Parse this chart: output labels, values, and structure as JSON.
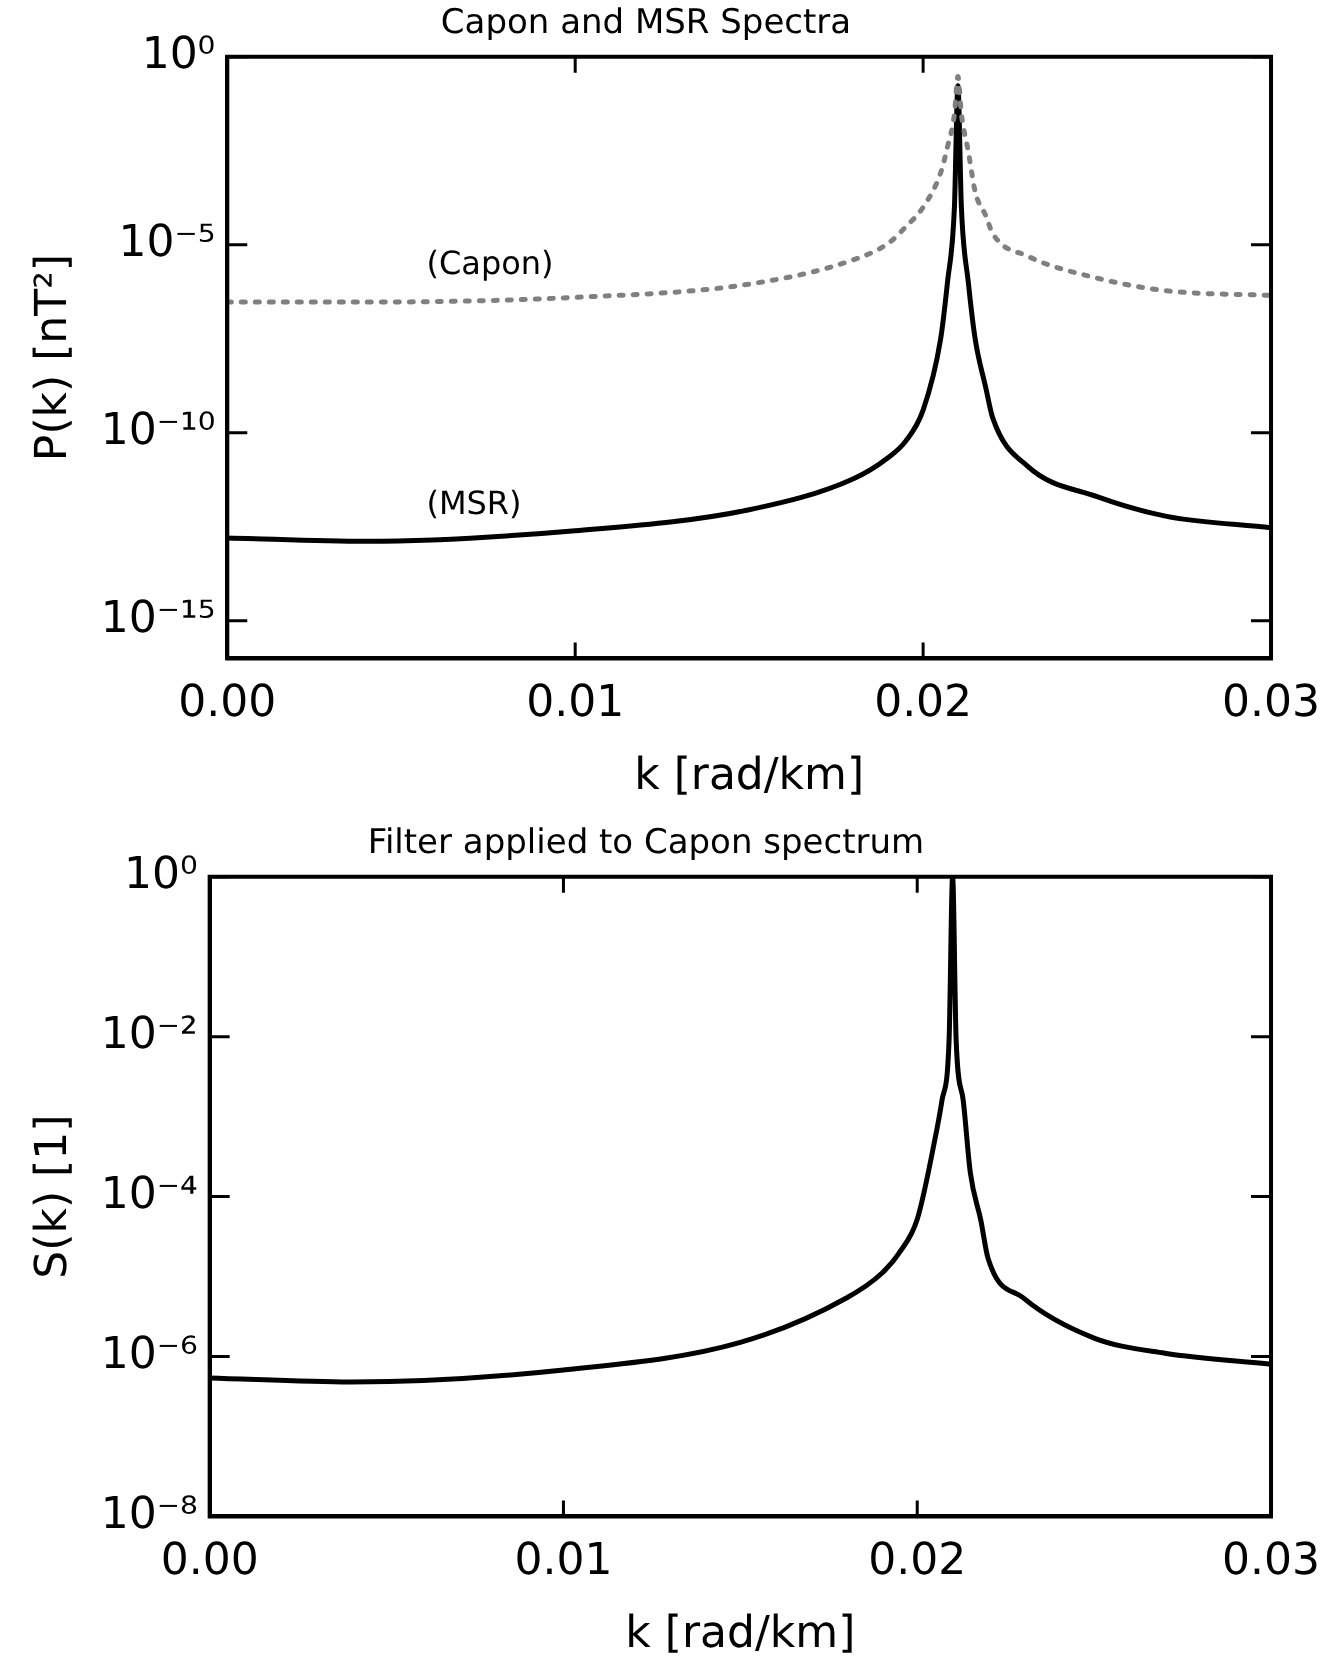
{
  "chart_data": [
    {
      "type": "line",
      "title": "Capon and MSR Spectra",
      "xlabel": "k [rad/km]",
      "ylabel": "P(k) [nT²]",
      "log": "y",
      "grid": false,
      "legend": false,
      "marker": "none",
      "x": [
        0,
        0.004,
        0.01,
        0.015,
        0.018,
        0.019,
        0.0195,
        0.02,
        0.0205,
        0.0207,
        0.0209,
        0.021,
        0.0211,
        0.0213,
        0.0215,
        0.0218,
        0.022,
        0.023,
        0.025,
        0.027,
        0.03
      ],
      "xlim": [
        0,
        0.03
      ],
      "xticks": [
        {
          "value": 0,
          "label": "0.00"
        },
        {
          "value": 0.01,
          "label": "0.01"
        },
        {
          "value": 0.02,
          "label": "0.02"
        },
        {
          "value": 0.03,
          "label": "0.03"
        }
      ],
      "ylim": [
        1e-16,
        1
      ],
      "yticks": [
        {
          "value": 1,
          "label": "10⁰"
        },
        {
          "value": 1e-05,
          "label": "10⁻⁵"
        },
        {
          "value": 1e-10,
          "label": "10⁻¹⁰"
        },
        {
          "value": 1e-15,
          "label": "10⁻¹⁵"
        }
      ],
      "series": [
        {
          "name": "(Capon)",
          "color": "#808080",
          "line_style": "dotted",
          "values": [
            3e-07,
            3e-07,
            4e-07,
            9e-07,
            4e-06,
            1.1e-05,
            3e-05,
            0.0001,
            0.0008,
            0.004,
            0.03,
            0.3,
            0.03,
            0.003,
            0.00025,
            6e-05,
            2e-05,
            5e-06,
            1.3e-06,
            6e-07,
            4.5e-07
          ]
        },
        {
          "name": "(MSR)",
          "color": "#000000",
          "line_style": "solid",
          "values": [
            1.6e-13,
            1.3e-13,
            2.5e-13,
            9e-13,
            6e-12,
            2.2e-11,
            6e-11,
            4e-10,
            3e-08,
            1e-06,
            0.0001,
            0.17,
            0.0001,
            1e-06,
            3e-08,
            1.6e-09,
            2.5e-10,
            1.3e-11,
            2e-12,
            6e-13,
            3e-13
          ]
        }
      ]
    },
    {
      "type": "line",
      "title": "Filter applied to Capon spectrum",
      "xlabel": "k [rad/km]",
      "ylabel": "S(k) [1]",
      "log": "y",
      "grid": false,
      "legend": false,
      "marker": "none",
      "x": [
        0,
        0.004,
        0.01,
        0.015,
        0.018,
        0.019,
        0.0195,
        0.02,
        0.0205,
        0.0207,
        0.0209,
        0.021,
        0.0211,
        0.0213,
        0.0215,
        0.0218,
        0.022,
        0.023,
        0.025,
        0.027,
        0.03
      ],
      "xlim": [
        0,
        0.03
      ],
      "xticks": [
        {
          "value": 0,
          "label": "0.00"
        },
        {
          "value": 0.01,
          "label": "0.01"
        },
        {
          "value": 0.02,
          "label": "0.02"
        },
        {
          "value": 0.03,
          "label": "0.03"
        }
      ],
      "ylim": [
        1e-08,
        1
      ],
      "yticks": [
        {
          "value": 1,
          "label": "10⁰"
        },
        {
          "value": 0.01,
          "label": "10⁻²"
        },
        {
          "value": 0.0001,
          "label": "10⁻⁴"
        },
        {
          "value": 1e-06,
          "label": "10⁻⁶"
        },
        {
          "value": 1e-08,
          "label": "10⁻⁸"
        }
      ],
      "series": [
        {
          "color": "#000000",
          "line_style": "solid",
          "values": [
            5.4e-07,
            4.8e-07,
            6.8e-07,
            1.5e-06,
            5.4e-06,
            1.1e-05,
            2e-05,
            5.2e-05,
            0.00052,
            0.0016,
            0.009,
            1,
            0.009,
            0.0016,
            0.0002,
            5e-05,
            1.7e-05,
            5.4e-06,
            1.7e-06,
            1.1e-06,
            8e-07
          ]
        }
      ]
    }
  ]
}
